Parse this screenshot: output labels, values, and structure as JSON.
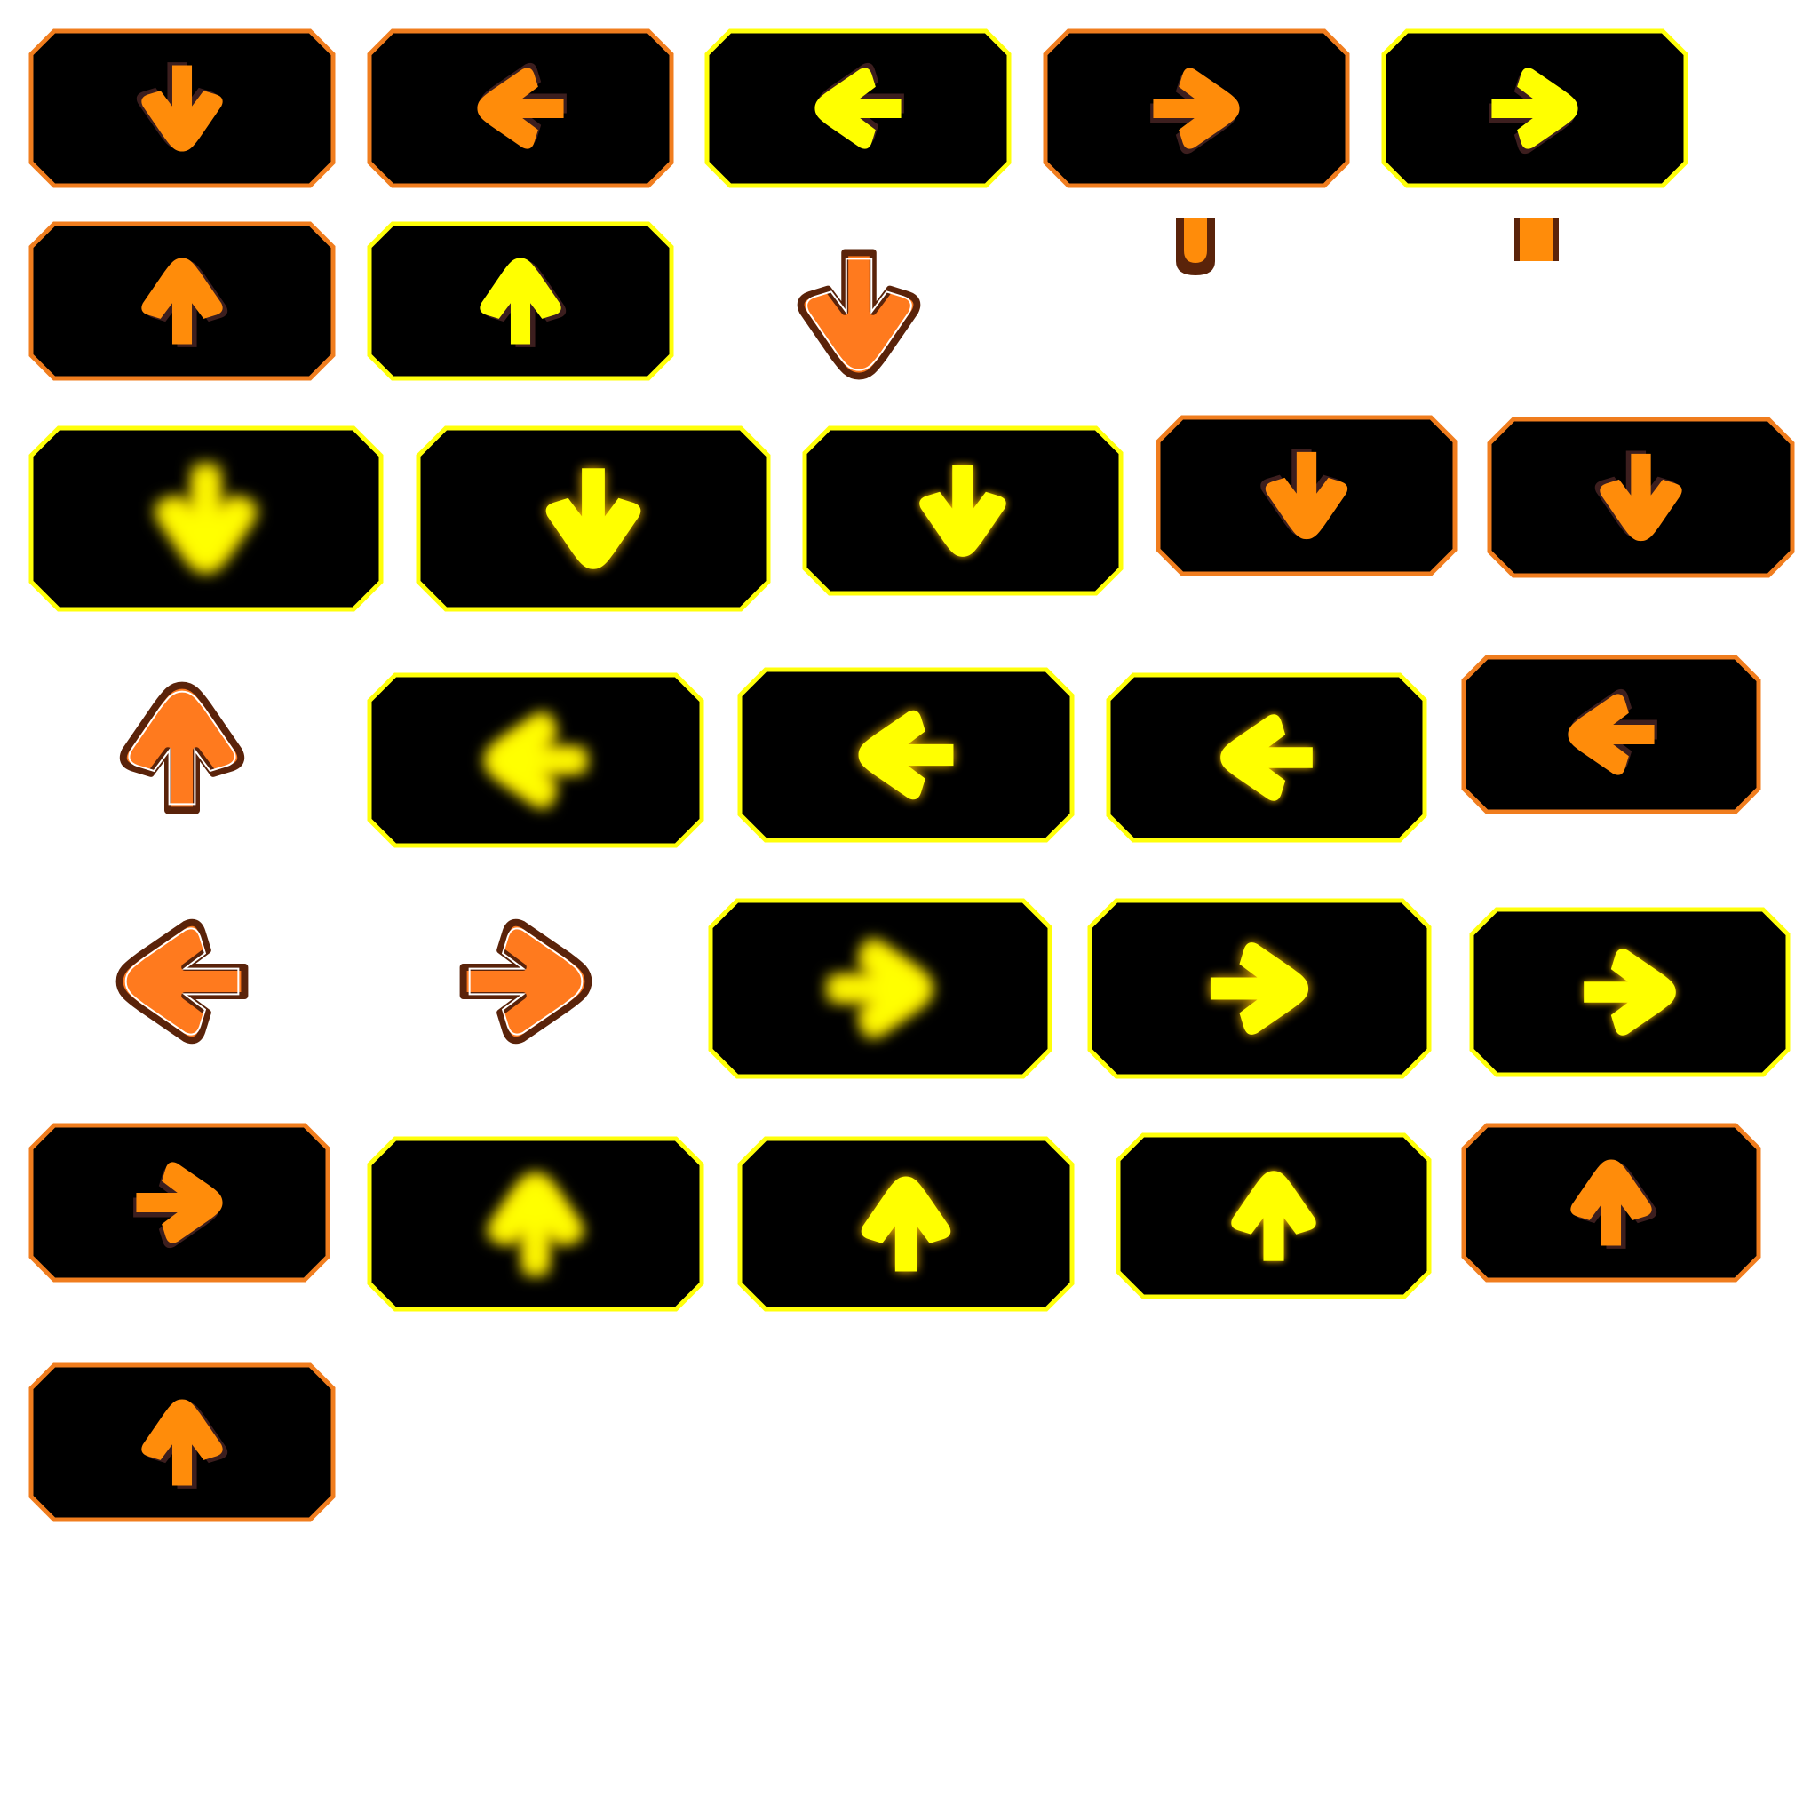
{
  "palette": {
    "orange": "#ff8c0a",
    "yellow": "#ffff00",
    "orange_border": "#f07d1e",
    "yellow_border": "#ffff0a",
    "dark_outline": "#5a230a",
    "panel_fill": "#000000",
    "shadow": "#3c1e1e"
  },
  "sprites": [
    {
      "id": "key-down-orange",
      "kind": "key",
      "dir": "down",
      "color": "orange",
      "border": "orange"
    },
    {
      "id": "key-left-orange",
      "kind": "key",
      "dir": "left",
      "color": "orange",
      "border": "orange"
    },
    {
      "id": "key-left-yellow",
      "kind": "key",
      "dir": "left",
      "color": "yellow",
      "border": "yellow"
    },
    {
      "id": "key-right-orange",
      "kind": "key",
      "dir": "right",
      "color": "orange",
      "border": "orange"
    },
    {
      "id": "key-right-yellow",
      "kind": "key",
      "dir": "right",
      "color": "yellow",
      "border": "yellow"
    },
    {
      "id": "key-up-orange",
      "kind": "key",
      "dir": "up",
      "color": "orange",
      "border": "orange"
    },
    {
      "id": "key-up-yellow",
      "kind": "key",
      "dir": "up",
      "color": "yellow",
      "border": "yellow"
    },
    {
      "id": "note-down",
      "kind": "note",
      "dir": "down"
    },
    {
      "id": "hold-end-orange",
      "kind": "holdcap",
      "style": "rounded"
    },
    {
      "id": "hold-piece-orange",
      "kind": "holdcap",
      "style": "square"
    },
    {
      "id": "press-down-glow-1",
      "kind": "key",
      "dir": "down",
      "color": "yellow",
      "border": "yellow",
      "glow": "blob"
    },
    {
      "id": "press-down-glow-2",
      "kind": "key",
      "dir": "down",
      "color": "yellow",
      "border": "yellow",
      "glow": "strong"
    },
    {
      "id": "press-down-glow-3",
      "kind": "key",
      "dir": "down",
      "color": "yellow",
      "border": "yellow",
      "glow": "soft"
    },
    {
      "id": "press-down-orange-1",
      "kind": "key",
      "dir": "down",
      "color": "orange",
      "border": "orange"
    },
    {
      "id": "press-down-orange-2",
      "kind": "key",
      "dir": "down",
      "color": "orange",
      "border": "orange"
    },
    {
      "id": "note-up",
      "kind": "note",
      "dir": "up"
    },
    {
      "id": "press-left-glow-1",
      "kind": "key",
      "dir": "left",
      "color": "yellow",
      "border": "yellow",
      "glow": "blob"
    },
    {
      "id": "press-left-glow-2",
      "kind": "key",
      "dir": "left",
      "color": "yellow",
      "border": "yellow",
      "glow": "strong"
    },
    {
      "id": "press-left-glow-3",
      "kind": "key",
      "dir": "left",
      "color": "yellow",
      "border": "yellow",
      "glow": "soft"
    },
    {
      "id": "press-left-orange",
      "kind": "key",
      "dir": "left",
      "color": "orange",
      "border": "orange"
    },
    {
      "id": "note-left",
      "kind": "note",
      "dir": "left"
    },
    {
      "id": "note-right",
      "kind": "note",
      "dir": "right"
    },
    {
      "id": "press-right-glow-1",
      "kind": "key",
      "dir": "right",
      "color": "yellow",
      "border": "yellow",
      "glow": "blob"
    },
    {
      "id": "press-right-glow-2",
      "kind": "key",
      "dir": "right",
      "color": "yellow",
      "border": "yellow",
      "glow": "strong"
    },
    {
      "id": "press-right-glow-3",
      "kind": "key",
      "dir": "right",
      "color": "yellow",
      "border": "yellow",
      "glow": "soft"
    },
    {
      "id": "press-right-orange",
      "kind": "key",
      "dir": "right",
      "color": "orange",
      "border": "orange"
    },
    {
      "id": "press-up-glow-1",
      "kind": "key",
      "dir": "up",
      "color": "yellow",
      "border": "yellow",
      "glow": "blob"
    },
    {
      "id": "press-up-glow-2",
      "kind": "key",
      "dir": "up",
      "color": "yellow",
      "border": "yellow",
      "glow": "strong"
    },
    {
      "id": "press-up-glow-3",
      "kind": "key",
      "dir": "up",
      "color": "yellow",
      "border": "yellow",
      "glow": "soft"
    },
    {
      "id": "press-up-orange",
      "kind": "key",
      "dir": "up",
      "color": "orange",
      "border": "orange"
    },
    {
      "id": "key-up-orange-2",
      "kind": "key",
      "dir": "up",
      "color": "orange",
      "border": "orange"
    }
  ]
}
